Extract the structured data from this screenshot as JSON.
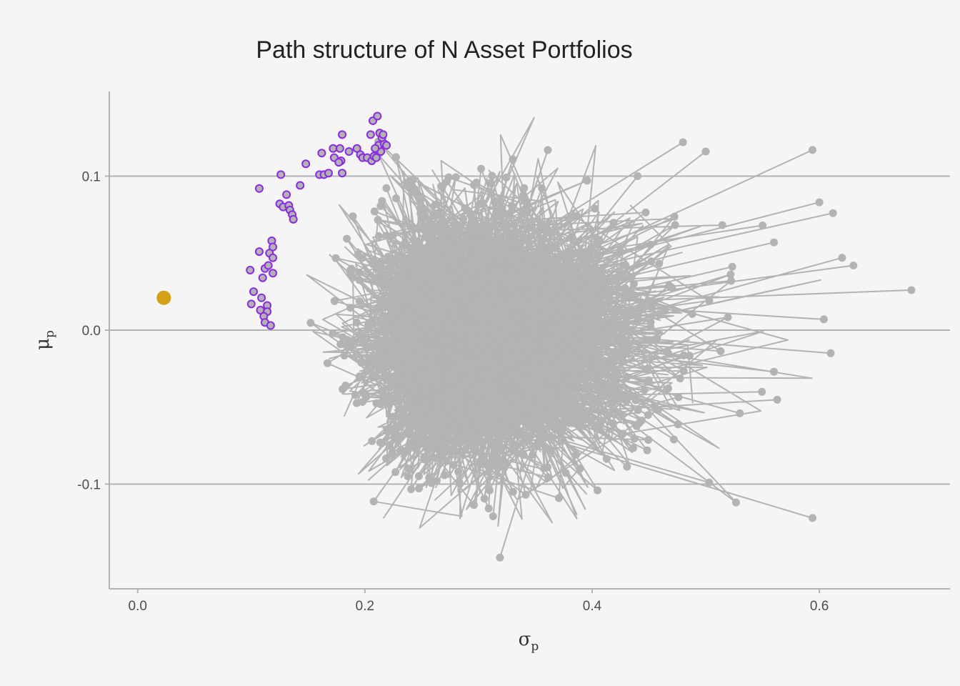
{
  "chart_data": {
    "type": "scatter",
    "title": "Path structure of N Asset Portfolios",
    "xlabel": {
      "main": "σ",
      "sub": "p"
    },
    "ylabel": {
      "main": "μ",
      "sub": "p"
    },
    "xlim": [
      -0.025,
      0.715
    ],
    "ylim": [
      -0.168,
      0.155
    ],
    "x_ticks": [
      {
        "value": 0.0,
        "label": "0.0"
      },
      {
        "value": 0.2,
        "label": "0.2"
      },
      {
        "value": 0.4,
        "label": "0.4"
      },
      {
        "value": 0.6,
        "label": "0.6"
      }
    ],
    "y_ticks": [
      {
        "value": 0.1,
        "label": "0.1"
      },
      {
        "value": 0.0,
        "label": "0.0"
      },
      {
        "value": -0.1,
        "label": "-0.1"
      }
    ],
    "grid": {
      "horizontal_major": true,
      "vertical": false
    },
    "colors": {
      "background": "#f5f5f5",
      "paths": "#b3b3b3",
      "grid": "#b3b3b3",
      "frontier_outline": "#8a2be2",
      "frontier_fill": "#b3b3b3",
      "min_variance": "#d4a017"
    },
    "series": [
      {
        "role": "frontier",
        "points": [
          [
            0.107,
            0.092
          ],
          [
            0.126,
            0.101
          ],
          [
            0.143,
            0.094
          ],
          [
            0.131,
            0.088
          ],
          [
            0.125,
            0.082
          ],
          [
            0.128,
            0.08
          ],
          [
            0.133,
            0.081
          ],
          [
            0.134,
            0.078
          ],
          [
            0.136,
            0.075
          ],
          [
            0.137,
            0.072
          ],
          [
            0.118,
            0.058
          ],
          [
            0.119,
            0.054
          ],
          [
            0.107,
            0.051
          ],
          [
            0.116,
            0.05
          ],
          [
            0.119,
            0.047
          ],
          [
            0.112,
            0.04
          ],
          [
            0.115,
            0.042
          ],
          [
            0.119,
            0.037
          ],
          [
            0.099,
            0.039
          ],
          [
            0.102,
            0.025
          ],
          [
            0.109,
            0.021
          ],
          [
            0.114,
            0.016
          ],
          [
            0.1,
            0.017
          ],
          [
            0.108,
            0.013
          ],
          [
            0.114,
            0.012
          ],
          [
            0.111,
            0.009
          ],
          [
            0.112,
            0.005
          ],
          [
            0.117,
            0.003
          ],
          [
            0.11,
            0.034
          ],
          [
            0.148,
            0.108
          ],
          [
            0.16,
            0.101
          ],
          [
            0.164,
            0.101
          ],
          [
            0.168,
            0.102
          ],
          [
            0.172,
            0.118
          ],
          [
            0.178,
            0.118
          ],
          [
            0.179,
            0.11
          ],
          [
            0.173,
            0.112
          ],
          [
            0.186,
            0.116
          ],
          [
            0.18,
            0.127
          ],
          [
            0.177,
            0.109
          ],
          [
            0.18,
            0.102
          ],
          [
            0.193,
            0.118
          ],
          [
            0.196,
            0.114
          ],
          [
            0.198,
            0.112
          ],
          [
            0.202,
            0.112
          ],
          [
            0.206,
            0.11
          ],
          [
            0.208,
            0.113
          ],
          [
            0.21,
            0.112
          ],
          [
            0.214,
            0.116
          ],
          [
            0.212,
            0.12
          ],
          [
            0.217,
            0.121
          ],
          [
            0.219,
            0.12
          ],
          [
            0.215,
            0.125
          ],
          [
            0.213,
            0.128
          ],
          [
            0.216,
            0.127
          ],
          [
            0.205,
            0.127
          ],
          [
            0.207,
            0.136
          ],
          [
            0.211,
            0.139
          ],
          [
            0.209,
            0.118
          ],
          [
            0.162,
            0.115
          ]
        ]
      },
      {
        "role": "min-variance",
        "points": [
          [
            0.023,
            0.021
          ]
        ]
      }
    ]
  }
}
